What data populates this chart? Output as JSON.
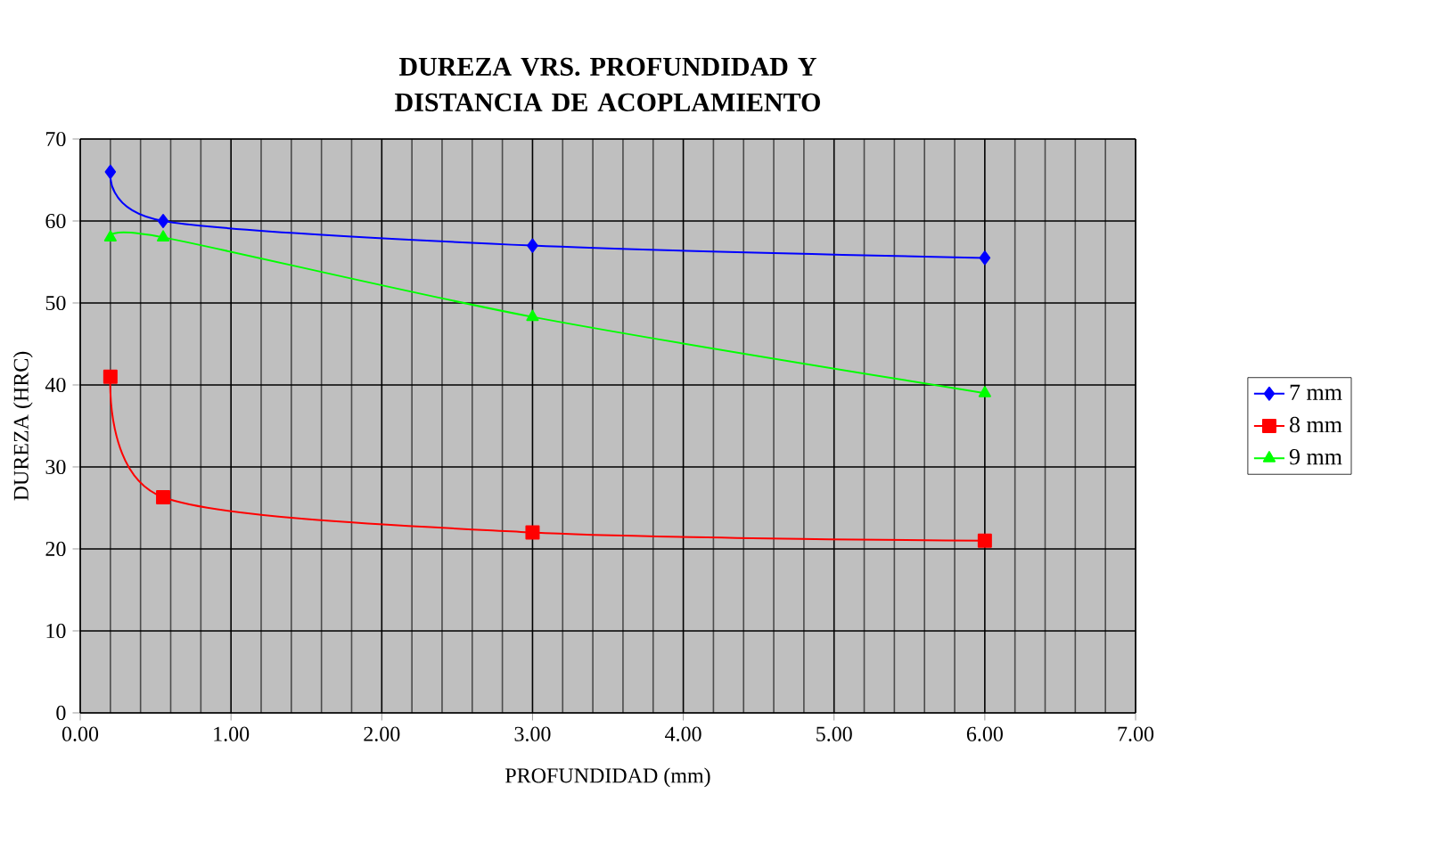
{
  "chart_data": {
    "type": "line",
    "title": "DUREZA VRS. PROFUNDIDAD Y DISTANCIA DE ACOPLAMIENTO",
    "xlabel": "PROFUNDIDAD (mm)",
    "ylabel": "DUREZA (HRC)",
    "x": [
      0.2,
      0.55,
      3,
      6
    ],
    "series": [
      {
        "name": "7 mm",
        "color": "#0000ff",
        "marker": "diamond",
        "values": [
          66,
          60,
          57,
          55.5
        ]
      },
      {
        "name": "8 mm",
        "color": "#ff0000",
        "marker": "square",
        "values": [
          41,
          26.3,
          22,
          21
        ]
      },
      {
        "name": "9 mm",
        "color": "#00ff00",
        "marker": "triangle",
        "values": [
          58,
          58,
          48.3,
          39
        ]
      }
    ],
    "xlim": [
      0,
      7
    ],
    "xticks": [
      {
        "value": 0,
        "label": "0.00"
      },
      {
        "value": 1,
        "label": "1.00"
      },
      {
        "value": 2,
        "label": "2.00"
      },
      {
        "value": 3,
        "label": "3.00"
      },
      {
        "value": 4,
        "label": "4.00"
      },
      {
        "value": 5,
        "label": "5.00"
      },
      {
        "value": 6,
        "label": "6.00"
      },
      {
        "value": 7,
        "label": "7.00"
      }
    ],
    "ylim": [
      0,
      70
    ],
    "yticks": [
      0,
      10,
      20,
      30,
      40,
      50,
      60,
      70
    ],
    "grid": true,
    "legend": "right",
    "line_style": "solid"
  }
}
